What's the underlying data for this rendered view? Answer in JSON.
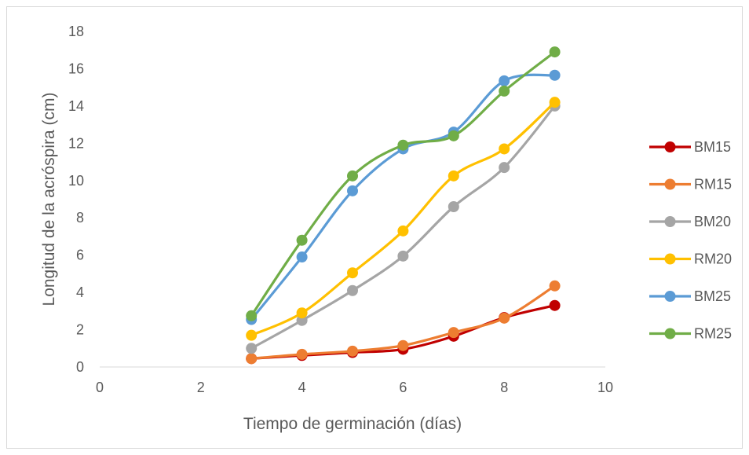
{
  "chart_data": {
    "type": "line",
    "title": "",
    "xlabel": "Tiempo de germinación (días)",
    "ylabel": "Longitud de la acróspira (cm)",
    "xlim": [
      0,
      10
    ],
    "ylim": [
      0,
      18
    ],
    "xticks": [
      0,
      2,
      4,
      6,
      8,
      10
    ],
    "yticks": [
      0,
      2,
      4,
      6,
      8,
      10,
      12,
      14,
      16,
      18
    ],
    "grid": false,
    "smooth": true,
    "legend_position": "right",
    "x": [
      3,
      4,
      5,
      6,
      7,
      8,
      9
    ],
    "series": [
      {
        "name": "BM15",
        "color": "#c00000",
        "values": [
          0.45,
          0.62,
          0.78,
          0.95,
          1.65,
          2.65,
          3.3
        ]
      },
      {
        "name": "RM15",
        "color": "#ed7d31",
        "values": [
          0.45,
          0.68,
          0.85,
          1.15,
          1.85,
          2.62,
          4.35
        ]
      },
      {
        "name": "BM20",
        "color": "#a5a5a5",
        "values": [
          1.0,
          2.5,
          4.1,
          5.95,
          8.6,
          10.7,
          14.0
        ]
      },
      {
        "name": "RM20",
        "color": "#ffc000",
        "values": [
          1.7,
          2.9,
          5.05,
          7.3,
          10.25,
          11.7,
          14.2
        ]
      },
      {
        "name": "BM25",
        "color": "#5b9bd5",
        "values": [
          2.55,
          5.9,
          9.45,
          11.7,
          12.6,
          15.35,
          15.65
        ]
      },
      {
        "name": "RM25",
        "color": "#70ad47",
        "values": [
          2.75,
          6.8,
          10.25,
          11.9,
          12.4,
          14.8,
          16.9
        ]
      }
    ]
  }
}
